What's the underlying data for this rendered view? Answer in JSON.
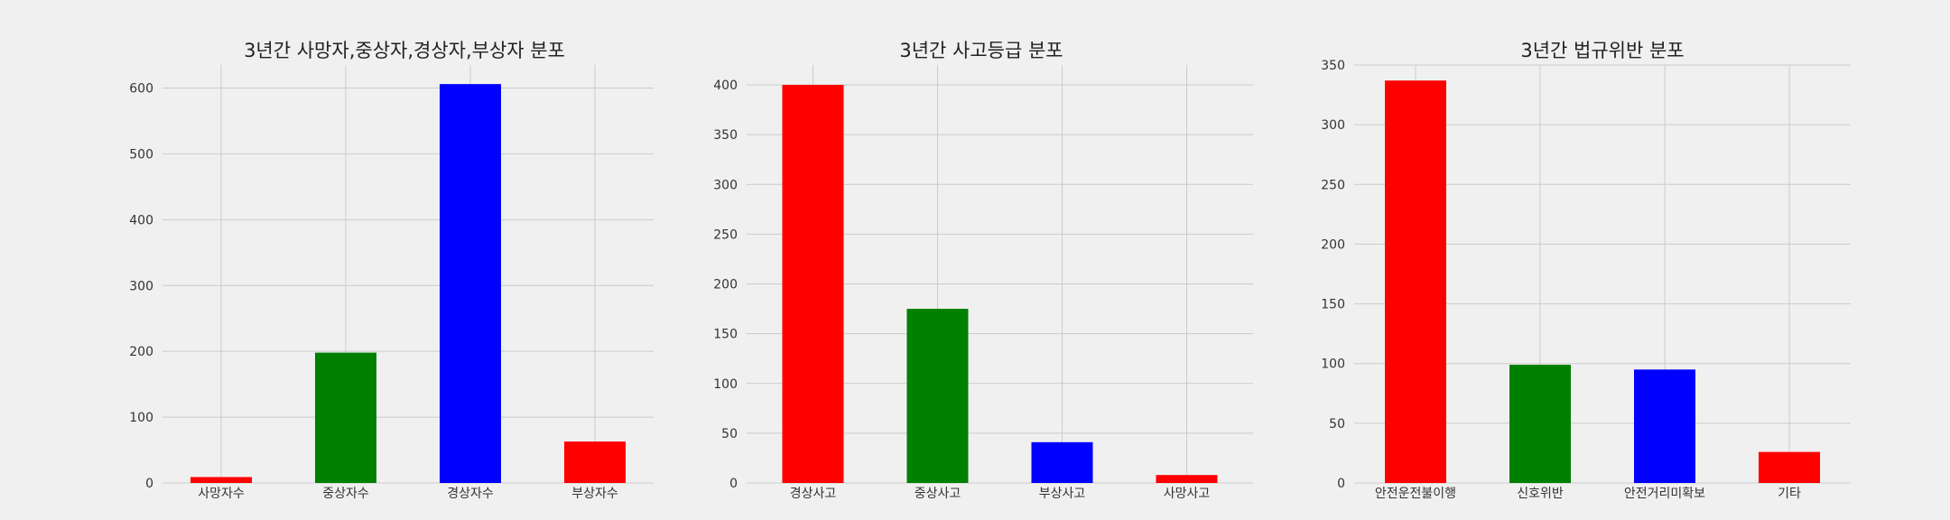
{
  "chart_data": [
    {
      "type": "bar",
      "title": "3년간 사망자,중상자,경상자,부상자 분포",
      "categories": [
        "사망자수",
        "중상자수",
        "경상자수",
        "부상자수"
      ],
      "values": [
        9,
        198,
        606,
        63
      ],
      "colors": [
        "#ff0000",
        "#008000",
        "#0000ff",
        "#ff0000"
      ],
      "ylim": [
        0,
        635
      ],
      "yticks": [
        0,
        100,
        200,
        300,
        400,
        500,
        600
      ],
      "grid": true
    },
    {
      "type": "bar",
      "title": "3년간 사고등급 분포",
      "categories": [
        "경상사고",
        "중상사고",
        "부상사고",
        "사망사고"
      ],
      "values": [
        400,
        175,
        41,
        8
      ],
      "colors": [
        "#ff0000",
        "#008000",
        "#0000ff",
        "#ff0000"
      ],
      "ylim": [
        0,
        420
      ],
      "yticks": [
        0,
        50,
        100,
        150,
        200,
        250,
        300,
        350,
        400
      ],
      "grid": true
    },
    {
      "type": "bar",
      "title": "3년간 법규위반 분포",
      "categories": [
        "안전운전불이행",
        "신호위반",
        "안전거리미확보",
        "기타"
      ],
      "values": [
        337,
        99,
        95,
        26
      ],
      "colors": [
        "#ff0000",
        "#008000",
        "#0000ff",
        "#ff0000"
      ],
      "ylim": [
        0,
        350
      ],
      "yticks": [
        0,
        50,
        100,
        150,
        200,
        250,
        300,
        350
      ],
      "grid": true
    }
  ]
}
